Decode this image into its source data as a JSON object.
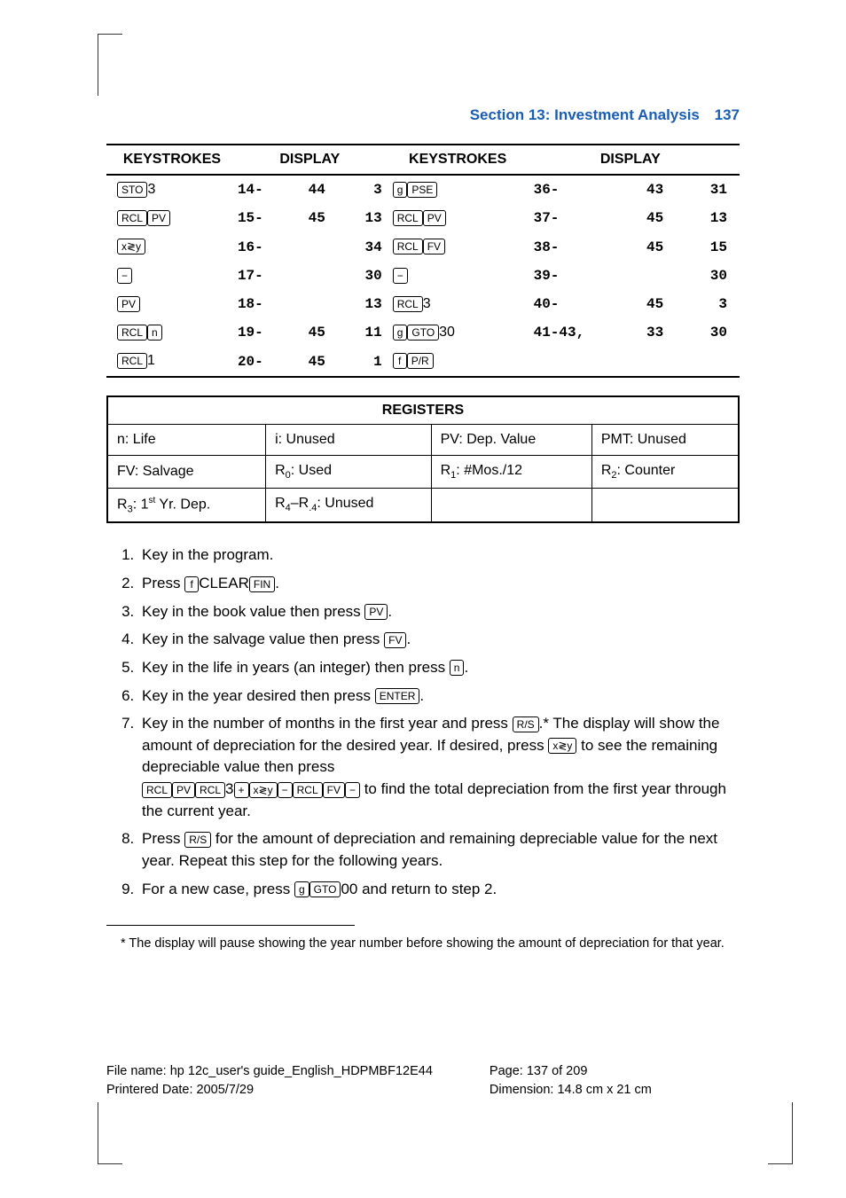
{
  "header": {
    "section_title": "Section 13: Investment Analysis",
    "page_num": "137"
  },
  "keystrokes_table": {
    "headers": {
      "keystrokes": "KEYSTROKES",
      "display": "DISPLAY"
    },
    "rows": [
      {
        "ks1": [
          {
            "k": "STO"
          },
          {
            "t": "3"
          }
        ],
        "d1a": "14-",
        "d1b": "44",
        "d1c": "3",
        "ks2": [
          {
            "k": "g"
          },
          {
            "k": "PSE"
          }
        ],
        "d2a": "36-",
        "d2b": "43",
        "d2c": "31"
      },
      {
        "ks1": [
          {
            "k": "RCL"
          },
          {
            "k": "PV"
          }
        ],
        "d1a": "15-",
        "d1b": "45",
        "d1c": "13",
        "ks2": [
          {
            "k": "RCL"
          },
          {
            "k": "PV"
          }
        ],
        "d2a": "37-",
        "d2b": "45",
        "d2c": "13"
      },
      {
        "ks1": [
          {
            "k": "x≷y"
          }
        ],
        "d1a": "16-",
        "d1b": "",
        "d1c": "34",
        "ks2": [
          {
            "k": "RCL"
          },
          {
            "k": "FV"
          }
        ],
        "d2a": "38-",
        "d2b": "45",
        "d2c": "15"
      },
      {
        "ks1": [
          {
            "k": "−"
          }
        ],
        "d1a": "17-",
        "d1b": "",
        "d1c": "30",
        "ks2": [
          {
            "k": "−"
          }
        ],
        "d2a": "39-",
        "d2b": "",
        "d2c": "30"
      },
      {
        "ks1": [
          {
            "k": "PV"
          }
        ],
        "d1a": "18-",
        "d1b": "",
        "d1c": "13",
        "ks2": [
          {
            "k": "RCL"
          },
          {
            "t": "3"
          }
        ],
        "d2a": "40-",
        "d2b": "45",
        "d2c": "3"
      },
      {
        "ks1": [
          {
            "k": "RCL"
          },
          {
            "k": "n"
          }
        ],
        "d1a": "19-",
        "d1b": "45",
        "d1c": "11",
        "ks2": [
          {
            "k": "g"
          },
          {
            "k": "GTO"
          },
          {
            "t": "30"
          }
        ],
        "d2a": "41-43,",
        "d2b": "33",
        "d2c": "30"
      },
      {
        "ks1": [
          {
            "k": "RCL"
          },
          {
            "t": "1"
          }
        ],
        "d1a": "20-",
        "d1b": "45",
        "d1c": "1",
        "ks2": [
          {
            "k": "f"
          },
          {
            "k": "P/R"
          }
        ],
        "d2a": "",
        "d2b": "",
        "d2c": ""
      }
    ]
  },
  "registers_table": {
    "title": "REGISTERS",
    "cells": {
      "r1c1": "n: Life",
      "r1c2": "i: Unused",
      "r1c3": "PV: Dep. Value",
      "r1c4": "PMT: Unused",
      "r2c1": "FV: Salvage",
      "r2c2_pre": "R",
      "r2c2_sub": "0",
      "r2c2_post": ": Used",
      "r2c3_pre": "R",
      "r2c3_sub": "1",
      "r2c3_post": ": #Mos./12",
      "r2c4_pre": "R",
      "r2c4_sub": "2",
      "r2c4_post": ": Counter",
      "r3c1_pre": "R",
      "r3c1_sub": "3",
      "r3c1_mid": ": 1",
      "r3c1_sup": "st",
      "r3c1_post": " Yr. Dep.",
      "r3c2_pre": "R",
      "r3c2_sub1": "4",
      "r3c2_dash": "–R",
      "r3c2_sub2": ".4",
      "r3c2_post": ": Unused"
    }
  },
  "steps": {
    "s1": "Key in the program.",
    "s2_a": "Press ",
    "s2_b": "CLEAR",
    "s2_c": ".",
    "s3_a": "Key in the book value then press ",
    "s3_b": ".",
    "s4_a": "Key in the salvage value then press ",
    "s4_b": ".",
    "s5_a": "Key in the life in years (an integer) then press ",
    "s5_b": ".",
    "s6_a": "Key in the year desired then press ",
    "s6_b": ".",
    "s7_a": "Key in the number of months in the first year and press ",
    "s7_b": ".*  The display will show the amount of depreciation for the desired year. If desired, press ",
    "s7_c": " to see the remaining depreciable value then press ",
    "s7_d": " to find the total depreciation from the first year through the current year.",
    "s8_a": "Press ",
    "s8_b": " for the amount of depreciation and remaining depreciable value for the next year. Repeat this step for the following years.",
    "s9_a": "For a new case, press ",
    "s9_b": "00 and return to step 2."
  },
  "keys": {
    "f": "f",
    "g": "g",
    "FIN": "FIN",
    "PV": "PV",
    "FV": "FV",
    "n": "n",
    "ENTER": "ENTER",
    "RS": "R/S",
    "xy": "x≷y",
    "RCL": "RCL",
    "minus": "−",
    "plus": "+",
    "GTO": "GTO",
    "three": "3"
  },
  "footnote": "* The display will pause showing the year number before showing the amount of depreciation for that year.",
  "footer": {
    "l1": "File name: hp 12c_user's guide_English_HDPMBF12E44",
    "l2": "Printered Date: 2005/7/29",
    "r1": "Page: 137 of 209",
    "r2": "Dimension: 14.8 cm x 21 cm"
  }
}
